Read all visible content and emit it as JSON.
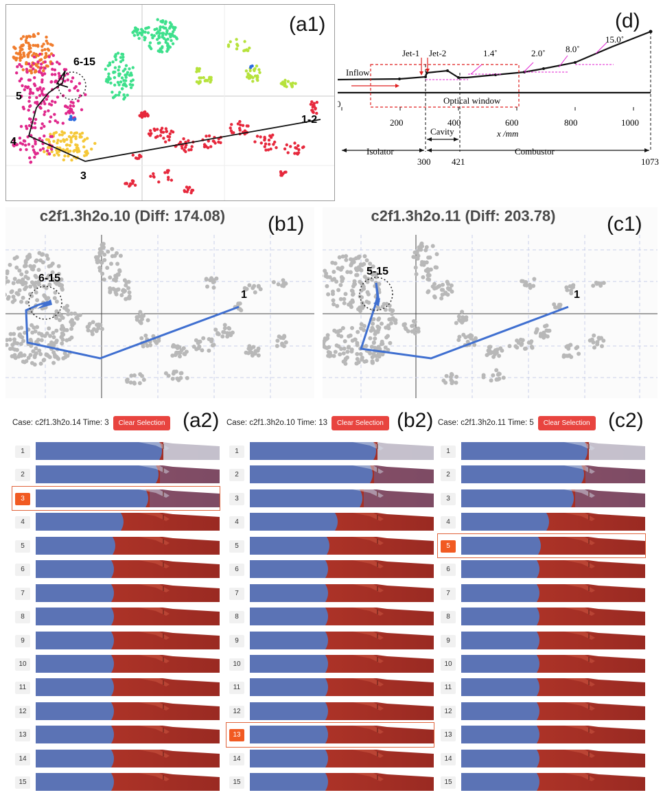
{
  "panel_labels": {
    "a1": "(a1)",
    "d": "(d)",
    "b1": "(b1)",
    "c1": "(c1)",
    "a2": "(a2)",
    "b2": "(b2)",
    "c2": "(c2)"
  },
  "a1": {
    "annotations": [
      "6-15",
      "5",
      "4",
      "3",
      "1-2"
    ],
    "colors": {
      "orange": "#f07c2c",
      "magenta": "#e0288c",
      "green": "#3ee08c",
      "lime": "#b6e23c",
      "yellow": "#f5c838",
      "red": "#e6283c",
      "blue": "#2c6ce0",
      "path": "#111111"
    }
  },
  "d": {
    "labels": {
      "jet1": "Jet-1",
      "jet2": "Jet-2",
      "inflow": "Inflow",
      "optical": "Optical window",
      "cavity": "Cavity",
      "isolator": "Isolator",
      "combustor": "Combustor",
      "axis": "x /mm"
    },
    "angles": [
      "1.4˚",
      "2.0˚",
      "8.0˚",
      "15.0˚"
    ],
    "ticks": [
      "0",
      "200",
      "400",
      "600",
      "800",
      "1000"
    ],
    "marks": [
      "300",
      "421",
      "1073"
    ]
  },
  "b1": {
    "title": "c2f1.3h2o.10 (Diff: 174.08)",
    "cluster_label": "6-15",
    "start_label": "1"
  },
  "c1": {
    "title": "c2f1.3h2o.11 (Diff: 203.78)",
    "cluster_label": "5-15",
    "start_label": "1"
  },
  "columns": [
    {
      "case_label": "Case: c2f1.3h2o.14 Time: 3",
      "button": "Clear Selection",
      "selected": 3
    },
    {
      "case_label": "Case: c2f1.3h2o.10 Time: 13",
      "button": "Clear Selection",
      "selected": 13
    },
    {
      "case_label": "Case: c2f1.3h2o.11 Time: 5",
      "button": "Clear Selection",
      "selected": 5
    }
  ],
  "frames": [
    "1",
    "2",
    "3",
    "4",
    "5",
    "6",
    "7",
    "8",
    "9",
    "10",
    "11",
    "12",
    "13",
    "14",
    "15"
  ],
  "flow_colors": {
    "blue": "#5b73b5",
    "red": "#b9392b",
    "dark_red": "#9a2a22",
    "light": "#c9d0df"
  }
}
